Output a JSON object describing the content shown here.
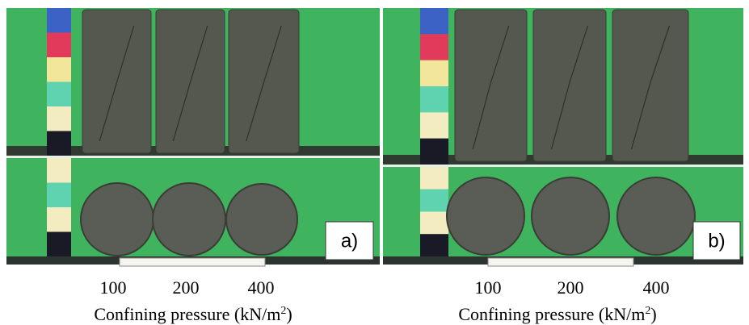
{
  "panels": [
    {
      "label": "a)",
      "specimens": [
        100,
        200,
        400
      ],
      "axis_label": {
        "text": "Confining pressure (kN/m",
        "superscript": "2",
        "close": ")"
      }
    },
    {
      "label": "b)",
      "specimens": [
        100,
        200,
        400
      ],
      "axis_label": {
        "text": "Confining pressure (kN/m",
        "superscript": "2",
        "close": ")"
      }
    }
  ]
}
